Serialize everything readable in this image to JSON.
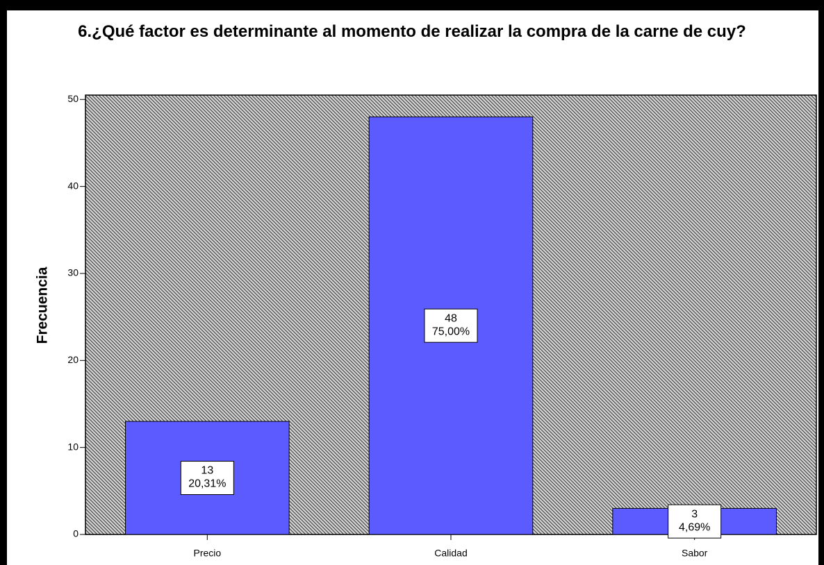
{
  "chart_data": {
    "type": "bar",
    "title": "6.¿Qué factor es determinante al momento de realizar la compra de la carne de cuy?",
    "y_label": "Frecuencia",
    "categories": [
      "Precio",
      "Calidad",
      "Sabor"
    ],
    "values": [
      13,
      48,
      3
    ],
    "percent_labels": [
      {
        "value": 20.31,
        "label": "20,31%"
      },
      {
        "value": 75.0,
        "label": "75,00%"
      },
      {
        "value": 4.69,
        "label": "4,69%"
      }
    ],
    "color": "#5b5bff",
    "ylim": [
      0,
      50.5
    ],
    "yticks": [
      0,
      10,
      20,
      30,
      40,
      50
    ],
    "grid": false
  }
}
